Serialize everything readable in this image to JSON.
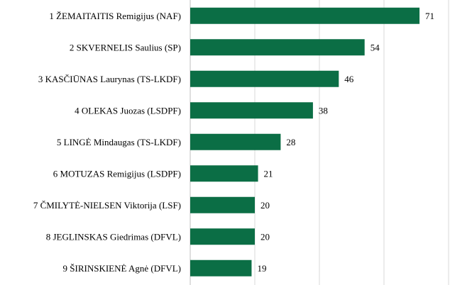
{
  "chart_data": {
    "type": "bar",
    "orientation": "horizontal",
    "title": "",
    "xlabel": "",
    "ylabel": "",
    "categories": [
      "1 ŽEMAITAITIS Remigijus (NAF)",
      "2 SKVERNELIS Saulius (SP)",
      "3 KASČIŪNAS Laurynas (TS-LKDF)",
      "4 OLEKAS Juozas (LSDPF)",
      "5 LINGĖ Mindaugas (TS-LKDF)",
      "6 MOTUZAS Remigijus (LSDPF)",
      "7 ČMILYTĖ-NIELSEN Viktorija (LSF)",
      "8 JEGLINSKAS Giedrimas (DFVL)",
      "9 ŠIRINSKIENĖ Agnė (DFVL)"
    ],
    "values": [
      71,
      54,
      46,
      38,
      28,
      21,
      20,
      20,
      19
    ],
    "xlim": [
      0,
      80
    ],
    "grid": true,
    "legend": "none",
    "bar_color": "#0b6e45",
    "gridline_color": "#d9d9d9"
  }
}
